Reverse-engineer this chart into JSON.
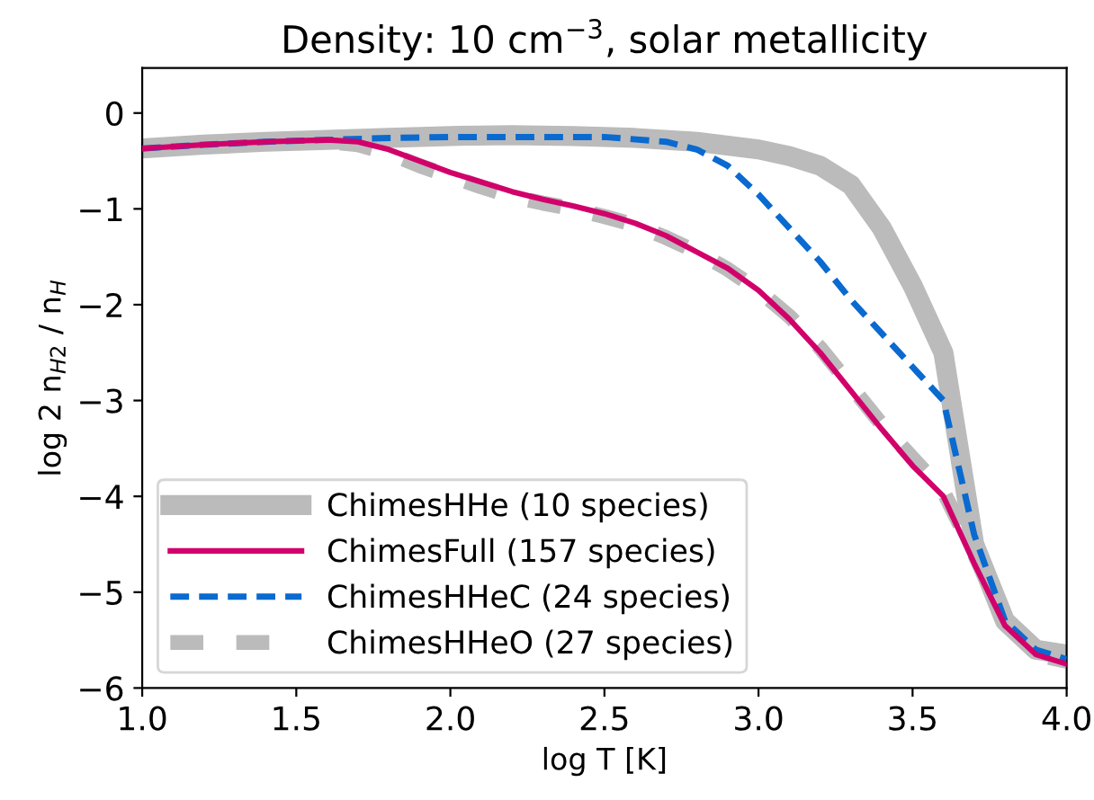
{
  "chart_data": {
    "type": "line",
    "title": "Density: 10 cm$^{−3}$, solar metallicity",
    "xlabel": "log T [K]",
    "ylabel": "log 2 n$_{H2}$ / n$_{H}$",
    "xlim": [
      1.0,
      4.0
    ],
    "xticks": [
      {
        "value": 1.0,
        "label": "1.0"
      },
      {
        "value": 1.5,
        "label": "1.5"
      },
      {
        "value": 2.0,
        "label": "2.0"
      },
      {
        "value": 2.5,
        "label": "2.5"
      },
      {
        "value": 3.0,
        "label": "3.0"
      },
      {
        "value": 3.5,
        "label": "3.5"
      },
      {
        "value": 4.0,
        "label": "4.0"
      }
    ],
    "ylim": [
      -6,
      0.47
    ],
    "yticks": [
      {
        "value": 0,
        "label": "0"
      },
      {
        "value": -1,
        "label": "−1"
      },
      {
        "value": -2,
        "label": "−2"
      },
      {
        "value": -3,
        "label": "−3"
      },
      {
        "value": -4,
        "label": "−4"
      },
      {
        "value": -5,
        "label": "−5"
      },
      {
        "value": -6,
        "label": "−6"
      }
    ],
    "grid": false,
    "legend": "bottom left",
    "marker": "none",
    "series": [
      {
        "name": "ChimesHHe (10 species)",
        "color": "#bbbbbb",
        "line_style": "solid",
        "x": [
          1.0,
          1.2,
          1.4,
          1.6,
          1.8,
          2.0,
          2.2,
          2.4,
          2.6,
          2.8,
          3.0,
          3.1,
          3.2,
          3.3,
          3.4,
          3.5,
          3.6,
          3.7,
          3.8,
          3.9,
          4.0
        ],
        "values": [
          -0.37,
          -0.33,
          -0.3,
          -0.28,
          -0.26,
          -0.24,
          -0.23,
          -0.24,
          -0.26,
          -0.3,
          -0.38,
          -0.45,
          -0.55,
          -0.75,
          -1.2,
          -1.8,
          -2.5,
          -4.5,
          -5.3,
          -5.6,
          -5.65
        ]
      },
      {
        "name": "ChimesFull (157 species)",
        "color": "#d1006b",
        "line_style": "solid",
        "x": [
          1.0,
          1.2,
          1.4,
          1.6,
          1.7,
          1.8,
          1.9,
          2.0,
          2.1,
          2.2,
          2.3,
          2.4,
          2.5,
          2.6,
          2.7,
          2.8,
          2.9,
          3.0,
          3.1,
          3.2,
          3.3,
          3.4,
          3.5,
          3.6,
          3.7,
          3.8,
          3.9,
          4.0
        ],
        "values": [
          -0.37,
          -0.33,
          -0.3,
          -0.28,
          -0.3,
          -0.38,
          -0.5,
          -0.62,
          -0.72,
          -0.82,
          -0.9,
          -0.97,
          -1.05,
          -1.15,
          -1.28,
          -1.45,
          -1.62,
          -1.85,
          -2.15,
          -2.5,
          -2.9,
          -3.3,
          -3.68,
          -4.0,
          -4.7,
          -5.35,
          -5.65,
          -5.75
        ]
      },
      {
        "name": "ChimesHHeC (24 species)",
        "color": "#0a6ad0",
        "line_style": "dashed",
        "x": [
          1.0,
          1.2,
          1.4,
          1.6,
          1.8,
          2.0,
          2.5,
          2.7,
          2.8,
          2.9,
          3.0,
          3.1,
          3.2,
          3.3,
          3.4,
          3.5,
          3.6,
          3.7,
          3.8,
          3.9,
          4.0
        ],
        "values": [
          -0.37,
          -0.33,
          -0.3,
          -0.28,
          -0.26,
          -0.25,
          -0.25,
          -0.3,
          -0.38,
          -0.55,
          -0.85,
          -1.2,
          -1.55,
          -1.95,
          -2.3,
          -2.65,
          -3.0,
          -4.4,
          -5.3,
          -5.6,
          -5.7
        ]
      },
      {
        "name": "ChimesHHeO (27 species)",
        "color": "#bbbbbb",
        "line_style": "dashed",
        "x": [
          1.0,
          1.2,
          1.4,
          1.6,
          1.7,
          1.8,
          1.9,
          2.0,
          2.1,
          2.2,
          2.3,
          2.4,
          2.5,
          2.6,
          2.7,
          2.8,
          2.9,
          3.0,
          3.1,
          3.2,
          3.3,
          3.4,
          3.5,
          3.6,
          3.7,
          3.8,
          3.9,
          4.0
        ],
        "values": [
          -0.39,
          -0.35,
          -0.31,
          -0.3,
          -0.33,
          -0.42,
          -0.55,
          -0.66,
          -0.77,
          -0.87,
          -0.94,
          -1.0,
          -1.08,
          -1.17,
          -1.3,
          -1.45,
          -1.63,
          -1.85,
          -2.12,
          -2.45,
          -2.85,
          -3.25,
          -3.6,
          -3.95,
          -4.6,
          -5.3,
          -5.65,
          -5.72
        ]
      }
    ]
  }
}
